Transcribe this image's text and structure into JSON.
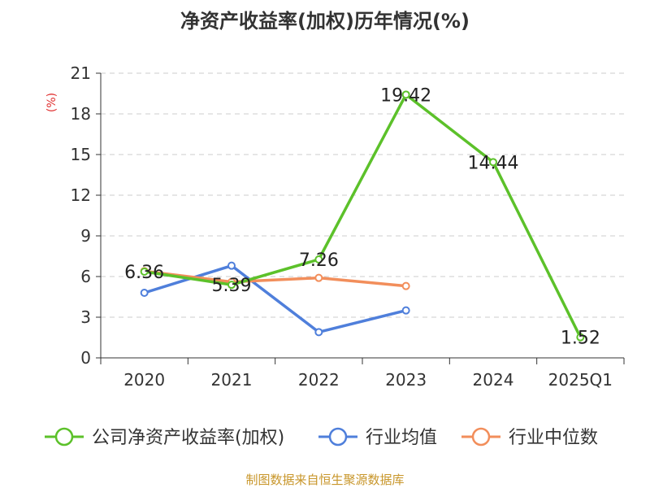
{
  "chart_data": {
    "type": "line",
    "title": "净资产收益率(加权)历年情况(%)",
    "ylabel": "(%)",
    "xlabel": "",
    "categories": [
      "2020",
      "2021",
      "2022",
      "2023",
      "2024",
      "2025Q1"
    ],
    "ylim": [
      0,
      21
    ],
    "yticks": [
      0,
      3,
      6,
      9,
      12,
      15,
      18,
      21
    ],
    "grid": true,
    "legend_position": "bottom",
    "series": [
      {
        "name": "公司净资产收益率(加权)",
        "color": "#5cc12a",
        "values": [
          6.36,
          5.39,
          7.26,
          19.42,
          14.44,
          1.52
        ],
        "labels": [
          "6.36",
          "5.39",
          "7.26",
          "19.42",
          "14.44",
          "1.52"
        ]
      },
      {
        "name": "行业均值",
        "color": "#4f7fdb",
        "values": [
          4.8,
          6.8,
          1.9,
          3.5,
          null,
          null
        ]
      },
      {
        "name": "行业中位数",
        "color": "#f28e5b",
        "values": [
          6.4,
          5.6,
          5.9,
          5.3,
          null,
          null
        ]
      }
    ]
  },
  "source_text": "制图数据来自恒生聚源数据库",
  "colors": {
    "axis": "#333333",
    "grid": "#cccccc",
    "ylabel": "#e03030",
    "source": "#c8962a"
  }
}
